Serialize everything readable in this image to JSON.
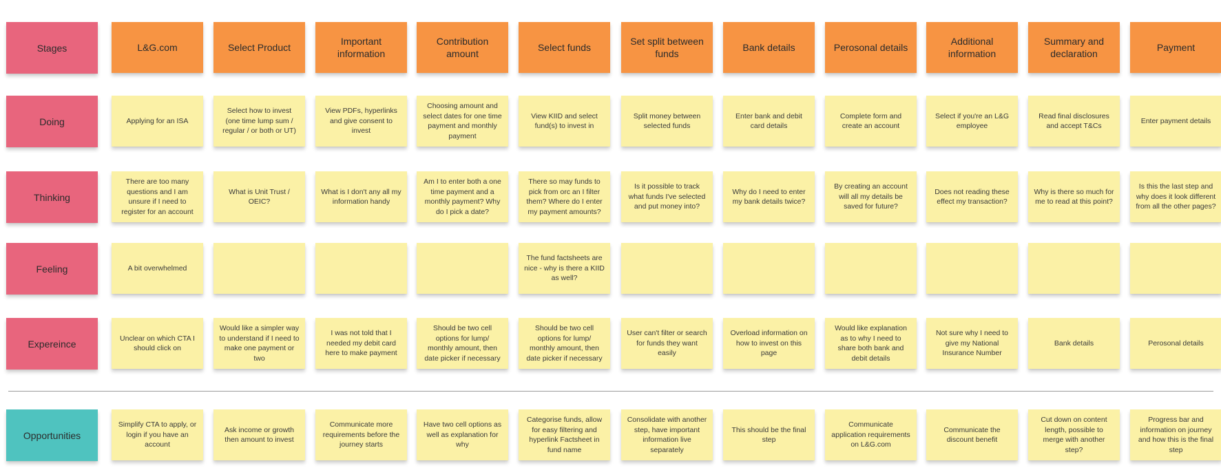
{
  "row_labels": {
    "stages": "Stages",
    "doing": "Doing",
    "thinking": "Thinking",
    "feeling": "Feeling",
    "experience": "Expereince",
    "opportunities": "Opportunities"
  },
  "stages": [
    "L&G.com",
    "Select Product",
    "Important information",
    "Contribution amount",
    "Select funds",
    "Set split between funds",
    "Bank details",
    "Perosonal details",
    "Additional information",
    "Summary and declaration",
    "Payment"
  ],
  "doing": [
    "Applying for an ISA",
    "Select how to invest (one time lump sum / regular / or both or UT)",
    "View PDFs, hyperlinks and give consent to invest",
    "Choosing amount and select dates for one time payment and monthly payment",
    "View KIID and select fund(s) to invest in",
    "Split money between selected funds",
    "Enter bank and debit card details",
    "Complete form and create an account",
    "Select if you're an L&G employee",
    "Read final disclosures and accept T&Cs",
    "Enter payment details"
  ],
  "thinking": [
    "There are too many questions and I am unsure if I need to register for an account",
    "What is Unit Trust / OEIC?",
    "What is I don't any all my information handy",
    "Am I to enter both a one time payment and a monthly payment? Why do I pick a date?",
    "There so may funds to pick from orc an I filter them? Where do I enter my payment amounts?",
    "Is it possible to track what funds I've selected and put money into?",
    "Why do I need to enter my bank details twice?",
    "By creating an account will all my details be saved for future?",
    "Does not reading these effect my transaction?",
    "Why is there so much for me to read at this point?",
    "Is this the last step and why does it look different from all the other pages?"
  ],
  "feeling": [
    "A bit overwhelmed",
    "",
    "",
    "",
    "The fund factsheets are nice - why is there a KIID as well?",
    "",
    "",
    "",
    "",
    "",
    ""
  ],
  "experience": [
    "Unclear on which CTA I should click on",
    "Would like a simpler way to understand if I need to make one payment or two",
    "I was not told that I needed my debit card here to make payment",
    "Should be two cell options for lump/ monthly amount, then date picker if necessary",
    "Should be two cell options for lump/ monthly amount, then date picker if necessary",
    "User can't filter or search for funds they want easily",
    "Overload information on how to invest on this page",
    "Would like explanation as to why I need to share both bank and debit details",
    "Not sure why I need to give my National Insurance Number",
    "Bank details",
    "Perosonal details"
  ],
  "opportunities": [
    "Simplify CTA to apply, or login if you have an account",
    "Ask income or growth then amount to invest",
    "Communicate more requirements before the journey starts",
    "Have two cell options as well as explanation for why",
    "Categorise funds, allow for easy filtering and hyperlink Factsheet in fund name",
    "Consolidate with another step, have important information live separately",
    "This should be the final step",
    "Communicate application requirements on L&G.com",
    "Communicate the discount benefit",
    "Cut down on content length, possible to merge with another step?",
    "Progress bar and information on journey and how this is the final step"
  ],
  "colors": {
    "stage": "#f79443",
    "row_label": "#e8657d",
    "opportunity_label": "#4fc3bf",
    "sticky": "#fbf1a6"
  }
}
